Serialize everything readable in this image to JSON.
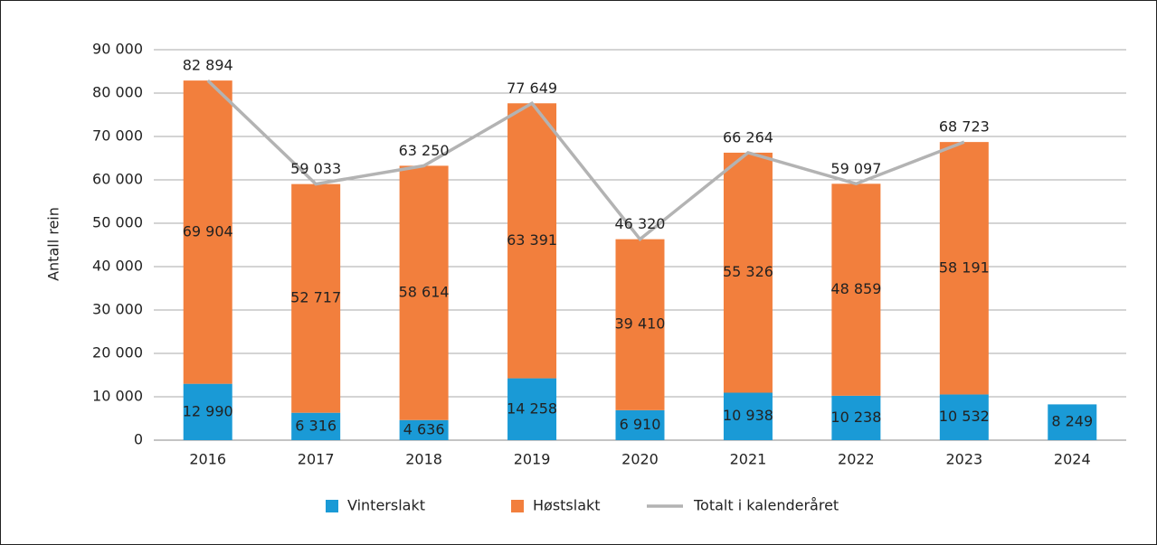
{
  "chart_data": {
    "type": "bar",
    "stacked": true,
    "y_label": "Antall rein",
    "categories": [
      "2016",
      "2017",
      "2018",
      "2019",
      "2020",
      "2021",
      "2022",
      "2023",
      "2024"
    ],
    "series": [
      {
        "name": "Vinterslakt",
        "type": "bar",
        "color": "#1a9ad6",
        "values": [
          12990,
          6316,
          4636,
          14258,
          6910,
          10938,
          10238,
          10532,
          8249
        ],
        "value_labels": [
          "12 990",
          "6 316",
          "4 636",
          "14 258",
          "6 910",
          "10 938",
          "10 238",
          "10 532",
          "8 249"
        ]
      },
      {
        "name": "Høstslakt",
        "type": "bar",
        "color": "#f27f3d",
        "values": [
          69904,
          52717,
          58614,
          63391,
          39410,
          55326,
          48859,
          58191,
          null
        ],
        "value_labels": [
          "69 904",
          "52 717",
          "58 614",
          "63 391",
          "39 410",
          "55 326",
          "48 859",
          "58 191",
          null
        ]
      },
      {
        "name": "Totalt i kalenderåret",
        "type": "line",
        "color": "#b3b3b3",
        "values": [
          82894,
          59033,
          63250,
          77649,
          46320,
          66264,
          59097,
          68723,
          null
        ],
        "value_labels": [
          "82 894",
          "59 033",
          "63 250",
          "77 649",
          "46 320",
          "66 264",
          "59 097",
          "68 723",
          null
        ]
      }
    ],
    "ylim": [
      0,
      90000
    ],
    "yticks": [
      0,
      {
        "value": 10000,
        "label": "10 000"
      },
      {
        "value": 20000,
        "label": "20 000"
      },
      {
        "value": 30000,
        "label": "30 000"
      },
      {
        "value": 40000,
        "label": "40 000"
      },
      {
        "value": 50000,
        "label": "50 000"
      },
      {
        "value": 60000,
        "label": "60 000"
      },
      {
        "value": 70000,
        "label": "70 000"
      },
      {
        "value": 80000,
        "label": "80 000"
      },
      {
        "value": 90000,
        "label": "90 000"
      }
    ],
    "grid": true,
    "legend": "bottom"
  }
}
